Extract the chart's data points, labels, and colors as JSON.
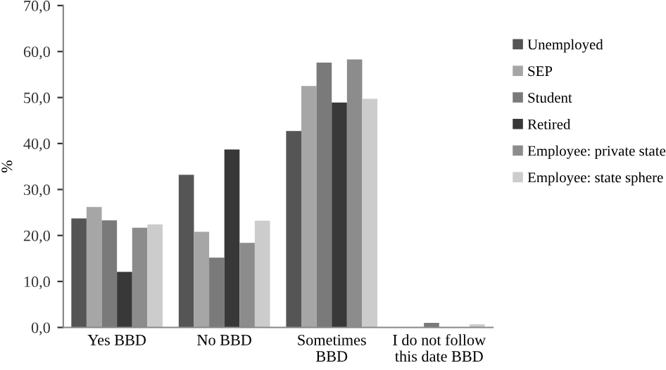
{
  "chart_data": {
    "type": "bar",
    "ylabel": "%",
    "categories": [
      "Yes BBD",
      "No BBD",
      "Sometimes\nBBD",
      "I do not follow\nthis date BBD"
    ],
    "series": [
      {
        "name": "Unemployed",
        "color": "#555555",
        "values": [
          23.7,
          33.2,
          42.7,
          0
        ]
      },
      {
        "name": "SEP",
        "color": "#a6a6a6",
        "values": [
          26.2,
          20.8,
          52.5,
          0
        ]
      },
      {
        "name": "Student",
        "color": "#7a7a7a",
        "values": [
          23.3,
          15.2,
          57.6,
          1.0
        ]
      },
      {
        "name": "Retired",
        "color": "#383838",
        "values": [
          12.1,
          38.7,
          48.9,
          0
        ]
      },
      {
        "name": "Employee: private state",
        "color": "#8c8c8c",
        "values": [
          21.7,
          18.4,
          58.3,
          0
        ]
      },
      {
        "name": "Employee: state sphere",
        "color": "#cccccc",
        "values": [
          22.4,
          23.2,
          49.7,
          0.7
        ]
      }
    ],
    "ylim": [
      0,
      70
    ],
    "yticks": [
      {
        "value": 0,
        "label": "0,0"
      },
      {
        "value": 10,
        "label": "10,0"
      },
      {
        "value": 20,
        "label": "20,0"
      },
      {
        "value": 30,
        "label": "30,0"
      },
      {
        "value": 40,
        "label": "40,0"
      },
      {
        "value": 50,
        "label": "50,0"
      },
      {
        "value": 60,
        "label": "60,0"
      },
      {
        "value": 70,
        "label": "70,0"
      }
    ],
    "legend": "right",
    "grid": false
  }
}
